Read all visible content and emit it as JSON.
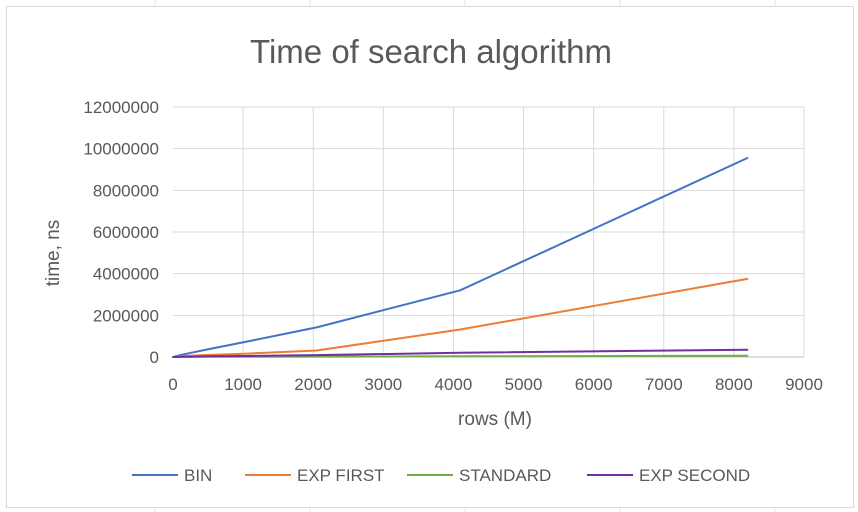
{
  "chart_data": {
    "type": "line",
    "title": "Time of search algorithm",
    "xlabel": "rows (M)",
    "ylabel": "time, ns",
    "xlim": [
      0,
      9000
    ],
    "ylim": [
      0,
      12000000
    ],
    "x_ticks": [
      "0",
      "1000",
      "2000",
      "3000",
      "4000",
      "5000",
      "6000",
      "7000",
      "8000",
      "9000"
    ],
    "y_ticks": [
      "0",
      "2000000",
      "4000000",
      "6000000",
      "8000000",
      "10000000",
      "12000000"
    ],
    "grid": true,
    "legend_position": "bottom",
    "series": [
      {
        "name": "BIN",
        "color": "#4472c4",
        "x": [
          1,
          2,
          4,
          8,
          16,
          32,
          64,
          128,
          256,
          512,
          1024,
          2048,
          4096,
          8192
        ],
        "y": [
          1000,
          2000,
          4000,
          8000,
          15000,
          30000,
          55000,
          110000,
          200000,
          380000,
          720000,
          1420000,
          3200000,
          9550000
        ]
      },
      {
        "name": "EXP FIRST",
        "color": "#ed7d31",
        "x": [
          1,
          2,
          4,
          8,
          16,
          32,
          64,
          128,
          256,
          512,
          1024,
          2048,
          4096,
          8192
        ],
        "y": [
          500,
          1000,
          2000,
          4000,
          7000,
          12000,
          20000,
          35000,
          60000,
          100000,
          160000,
          310000,
          1320000,
          3750000
        ]
      },
      {
        "name": "STANDARD",
        "color": "#70ad47",
        "x": [
          1,
          2,
          4,
          8,
          16,
          32,
          64,
          128,
          256,
          512,
          1024,
          2048,
          4096,
          8192
        ],
        "y": [
          100,
          200,
          300,
          500,
          800,
          1200,
          2000,
          3000,
          5000,
          8000,
          12000,
          20000,
          35000,
          60000
        ]
      },
      {
        "name": "EXP SECOND",
        "color": "#7030a0",
        "x": [
          1,
          2,
          4,
          8,
          16,
          32,
          64,
          128,
          256,
          512,
          1024,
          2048,
          4096,
          8192
        ],
        "y": [
          200,
          400,
          800,
          1500,
          2500,
          4000,
          7000,
          12000,
          20000,
          32000,
          50000,
          90000,
          200000,
          350000
        ]
      }
    ]
  }
}
